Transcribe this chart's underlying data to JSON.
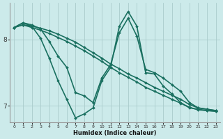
{
  "xlabel": "Humidex (Indice chaleur)",
  "bg_color": "#cceaea",
  "grid_color": "#aacccc",
  "line_color": "#1a7060",
  "xlim": [
    -0.5,
    23.5
  ],
  "ylim": [
    6.75,
    8.55
  ],
  "yticks": [
    7,
    8
  ],
  "xticks": [
    0,
    1,
    2,
    3,
    4,
    5,
    6,
    7,
    8,
    9,
    10,
    11,
    12,
    13,
    14,
    15,
    16,
    17,
    18,
    19,
    20,
    21,
    22,
    23
  ],
  "series": [
    {
      "x": [
        0,
        1,
        2,
        3,
        4,
        5,
        6,
        7,
        8,
        9,
        10,
        11,
        12,
        13,
        14,
        15,
        16,
        17,
        18,
        19,
        20,
        21,
        22,
        23
      ],
      "y": [
        8.18,
        8.22,
        8.2,
        8.17,
        8.13,
        8.08,
        8.02,
        7.96,
        7.88,
        7.8,
        7.72,
        7.63,
        7.56,
        7.48,
        7.42,
        7.35,
        7.28,
        7.22,
        7.16,
        7.1,
        7.02,
        6.97,
        6.95,
        6.93
      ],
      "linewidth": 1.2,
      "marker": "D",
      "markersize": 2.0
    },
    {
      "x": [
        0,
        1,
        2,
        3,
        4,
        5,
        6,
        7,
        8,
        9,
        10,
        11,
        12,
        13,
        14,
        15,
        16,
        17,
        18,
        19,
        20,
        21,
        22,
        23
      ],
      "y": [
        8.18,
        8.22,
        8.18,
        8.14,
        8.09,
        8.03,
        7.97,
        7.9,
        7.83,
        7.75,
        7.67,
        7.58,
        7.5,
        7.43,
        7.36,
        7.28,
        7.22,
        7.16,
        7.1,
        7.04,
        6.98,
        6.94,
        6.93,
        6.92
      ],
      "linewidth": 1.2,
      "marker": "D",
      "markersize": 2.0
    },
    {
      "x": [
        0,
        1,
        2,
        3,
        4,
        5,
        6,
        7,
        8,
        9,
        10,
        11,
        12,
        13,
        14,
        15,
        16,
        17,
        18,
        19,
        20,
        21,
        22,
        23
      ],
      "y": [
        8.18,
        8.25,
        8.22,
        8.16,
        7.97,
        7.75,
        7.58,
        7.2,
        7.15,
        7.05,
        7.42,
        7.62,
        8.1,
        8.32,
        8.05,
        7.55,
        7.5,
        7.42,
        7.32,
        7.22,
        7.05,
        6.97,
        6.95,
        6.93
      ],
      "linewidth": 1.2,
      "marker": "D",
      "markersize": 2.0
    },
    {
      "x": [
        0,
        1,
        2,
        3,
        4,
        5,
        6,
        7,
        8,
        9,
        10,
        11,
        12,
        13,
        14,
        15,
        16,
        17,
        18,
        19,
        20,
        21,
        22,
        23
      ],
      "y": [
        8.18,
        8.25,
        8.2,
        8.02,
        7.72,
        7.38,
        7.1,
        6.82,
        6.88,
        6.97,
        7.38,
        7.58,
        8.2,
        8.42,
        8.2,
        7.5,
        7.48,
        7.3,
        7.18,
        7.05,
        6.97,
        6.95,
        6.93,
        6.92
      ],
      "linewidth": 1.2,
      "marker": "D",
      "markersize": 2.0
    }
  ]
}
